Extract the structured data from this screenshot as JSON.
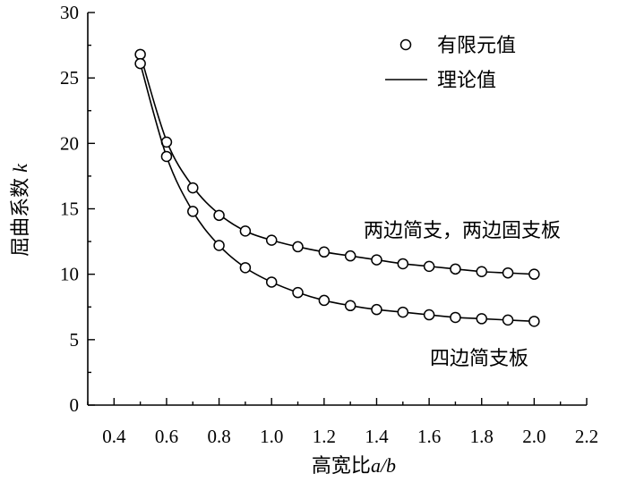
{
  "chart_data": {
    "type": "scatter",
    "x_label_prefix": "高宽比",
    "x_label_var": "a/b",
    "y_label_prefix": "屈曲系数",
    "y_label_var": "k",
    "xlim": [
      0.3,
      2.2
    ],
    "ylim": [
      0,
      30
    ],
    "xticks": [
      0.4,
      0.6,
      0.8,
      1.0,
      1.2,
      1.4,
      1.6,
      1.8,
      2.0,
      2.2
    ],
    "xtick_labels": [
      "0.4",
      "0.6",
      "0.8",
      "1.0",
      "1.2",
      "1.4",
      "1.6",
      "1.8",
      "2.0",
      "2.2"
    ],
    "yticks": [
      0,
      5,
      10,
      15,
      20,
      25,
      30
    ],
    "ytick_labels": [
      "0",
      "5",
      "10",
      "15",
      "20",
      "25",
      "30"
    ],
    "legend": {
      "position": "top-right",
      "entries": [
        {
          "label": "有限元值",
          "style": "open-circle"
        },
        {
          "label": "理论值",
          "style": "line"
        }
      ]
    },
    "annotations": {
      "upper": "两边简支，两边固支板",
      "lower": "四边简支板"
    },
    "series": [
      {
        "x": [
          0.5,
          0.6,
          0.7,
          0.8,
          0.9,
          1.0,
          1.1,
          1.2,
          1.3,
          1.4,
          1.5,
          1.6,
          1.7,
          1.8,
          1.9,
          2.0
        ],
        "fem": [
          26.8,
          20.1,
          16.6,
          14.5,
          13.3,
          12.6,
          12.1,
          11.7,
          11.4,
          11.1,
          10.8,
          10.6,
          10.4,
          10.2,
          10.1,
          10.0
        ],
        "theory": [
          26.8,
          20.2,
          16.7,
          14.6,
          13.3,
          12.6,
          12.1,
          11.7,
          11.4,
          11.1,
          10.8,
          10.6,
          10.4,
          10.2,
          10.1,
          10.0
        ]
      },
      {
        "x": [
          0.5,
          0.6,
          0.7,
          0.8,
          0.9,
          1.0,
          1.1,
          1.2,
          1.3,
          1.4,
          1.5,
          1.6,
          1.7,
          1.8,
          1.9,
          2.0
        ],
        "fem": [
          26.1,
          19.0,
          14.8,
          12.2,
          10.5,
          9.4,
          8.6,
          8.0,
          7.6,
          7.3,
          7.1,
          6.9,
          6.7,
          6.6,
          6.5,
          6.4
        ],
        "theory": [
          26.1,
          19.0,
          14.8,
          12.2,
          10.5,
          9.4,
          8.6,
          8.0,
          7.6,
          7.3,
          7.1,
          6.9,
          6.7,
          6.6,
          6.5,
          6.4
        ]
      }
    ]
  }
}
